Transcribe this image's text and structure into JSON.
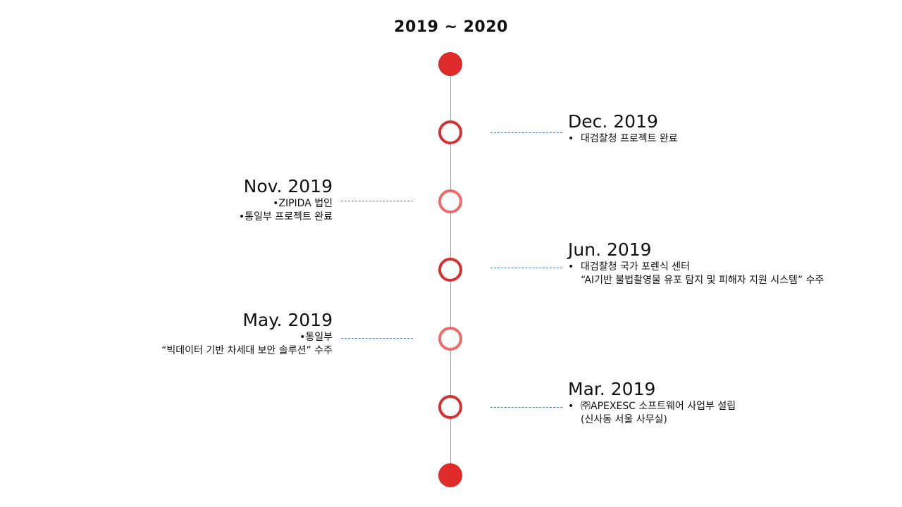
{
  "title": "2019 ~ 2020",
  "bullet": "•",
  "entries": {
    "dec2019": {
      "date": "Dec. 2019",
      "lines": [
        "대검찰청 프로젝트 완료"
      ]
    },
    "nov2019": {
      "date": "Nov. 2019",
      "lines": [
        "ZIPIDA 법인",
        "통일부 프로젝트 완료"
      ]
    },
    "jun2019": {
      "date": "Jun. 2019",
      "line1": "대검찰청 국가 포렌식 센터",
      "line2": "“AI기반 불법촬영물 유포 탐지 및 피해자 지원 시스템” 수주"
    },
    "may2019": {
      "date": "May. 2019",
      "line1": "통일부",
      "line2": "“빅데이터 기반 차세대 보안 솔루션” 수주"
    },
    "mar2019": {
      "date": "Mar. 2019",
      "line1": "㈜APEXESC 소프트웨어 사업부 설립",
      "line2": "(신사동 서울 사무실)"
    }
  },
  "colors": {
    "node_solid": "#e02b2b",
    "node_ring_dark": "#d63232",
    "node_ring_light": "#ef6a6a",
    "connector": "#4f7bb0",
    "axis": "#a6a6a6"
  }
}
